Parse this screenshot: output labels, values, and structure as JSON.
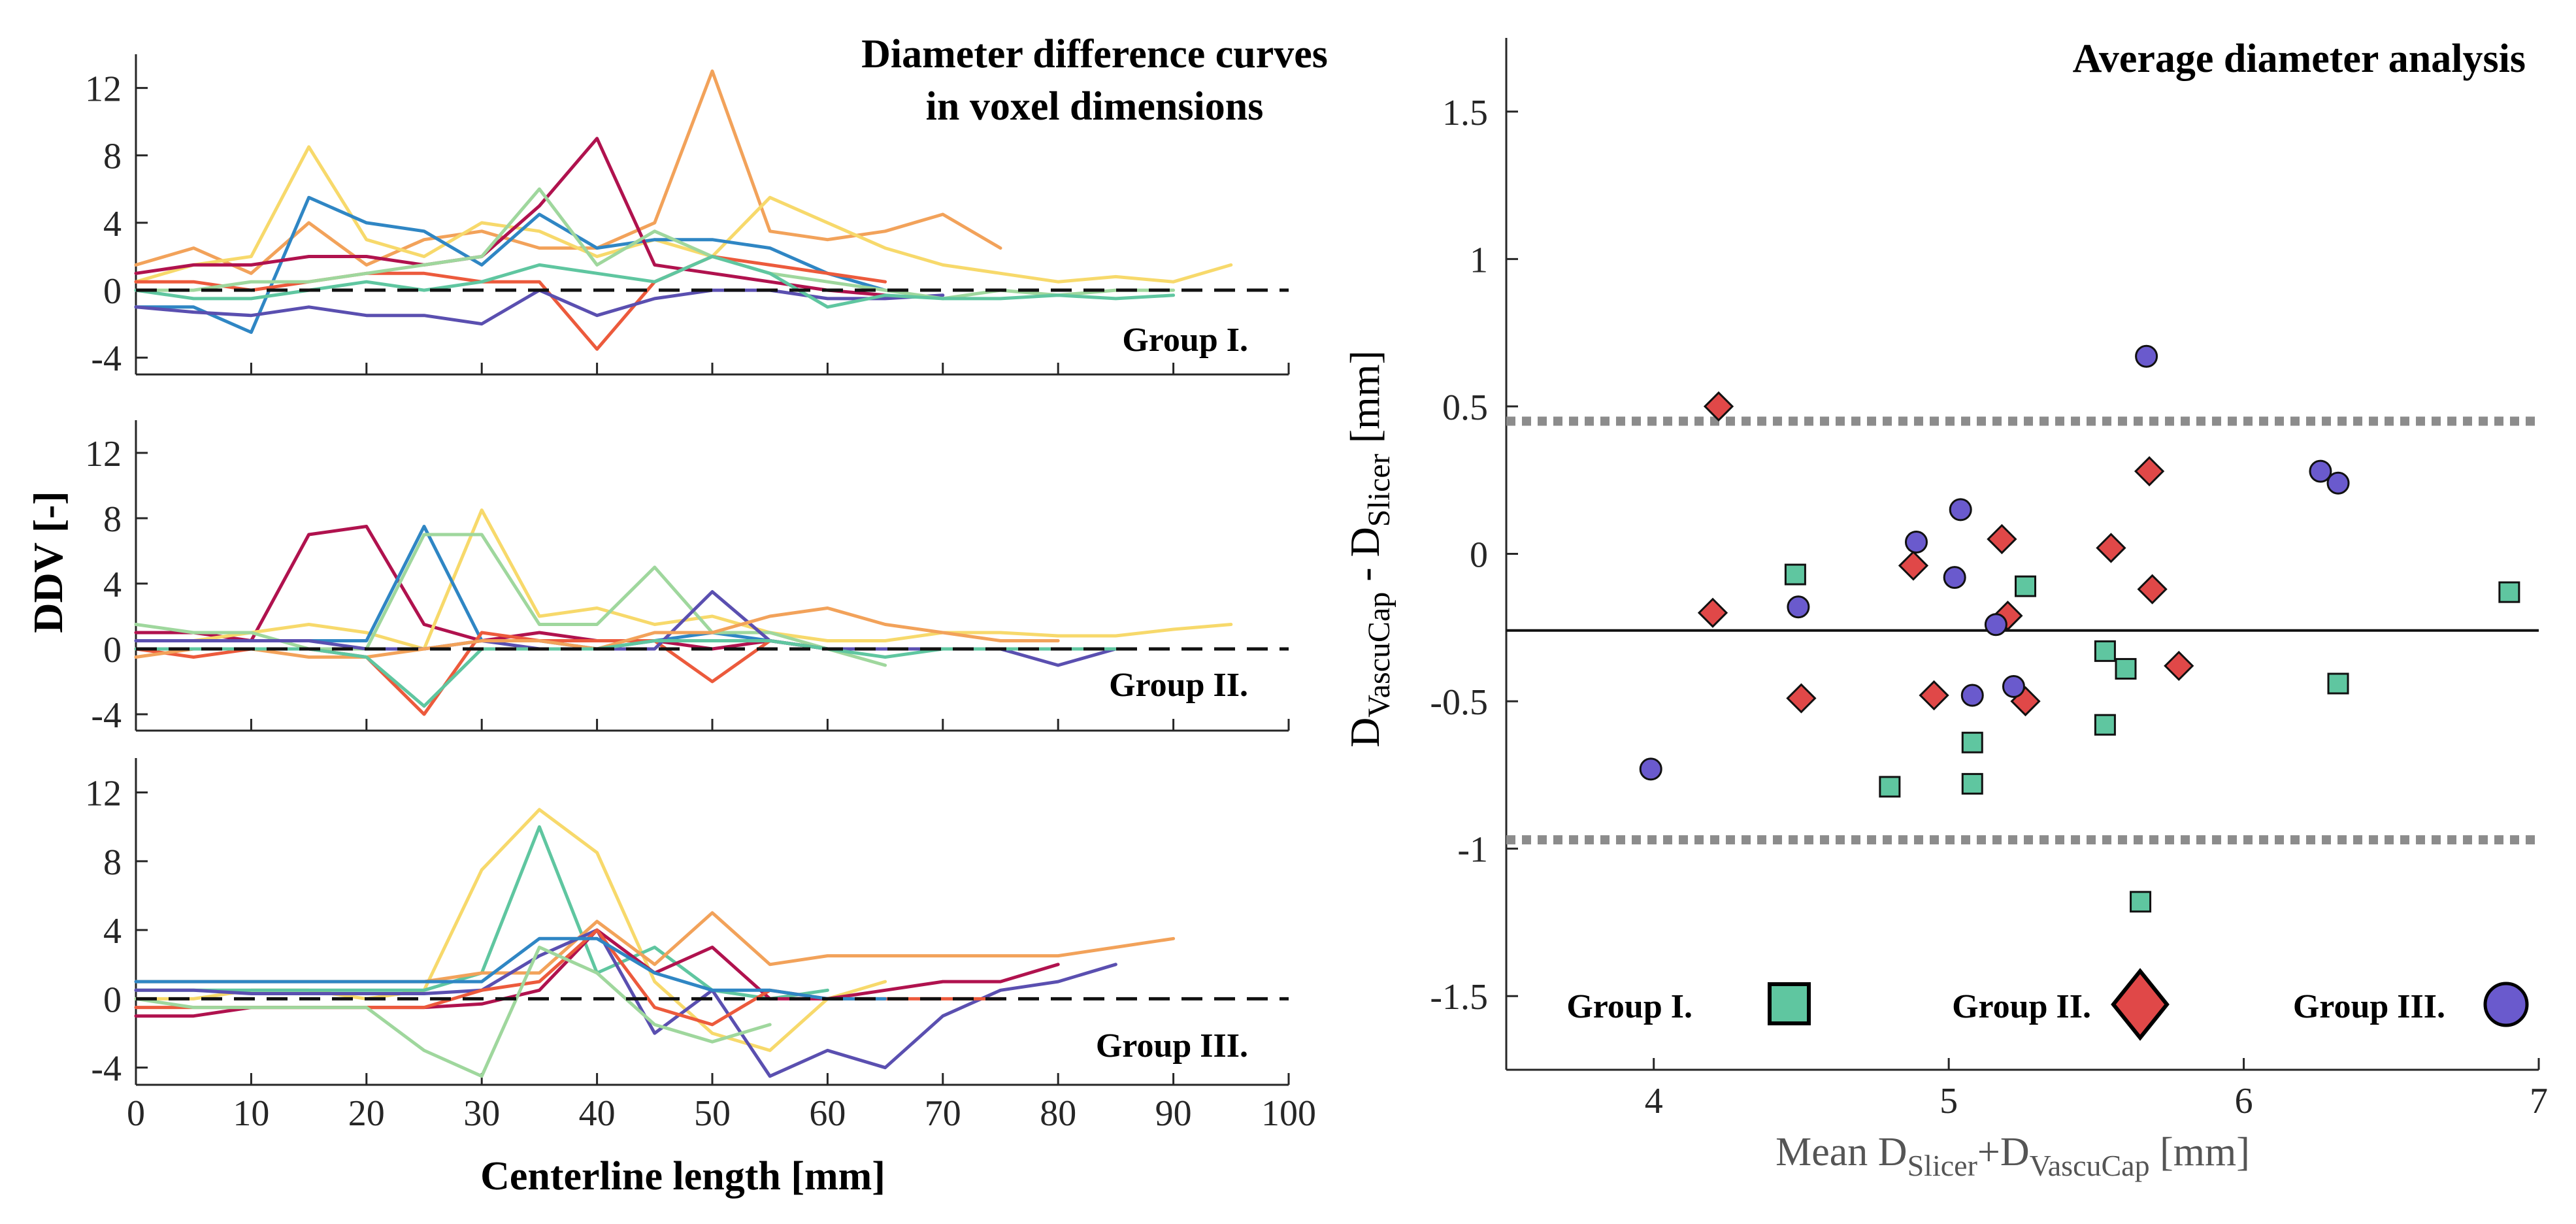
{
  "figure": {
    "left_panel": {
      "title_line1": "Diameter difference curves",
      "title_line2": "in voxel dimensions",
      "ylabel": "DDV [-]",
      "xlabel": "Centerline length [mm]",
      "group_labels": [
        "Group I.",
        "Group II.",
        "Group III."
      ]
    },
    "right_panel": {
      "title": "Average diameter analysis",
      "ylabel": {
        "main": "D",
        "sub1": "VascuCap",
        "mid": " - D",
        "sub2": "Slicer",
        "unit": " [mm]"
      },
      "xlabel": {
        "main": "Mean D",
        "sub1": "Slicer",
        "mid": "+D",
        "sub2": "VascuCap",
        "unit": " [mm]"
      },
      "legend": [
        {
          "label": "Group I.",
          "marker": "square",
          "color": "#5fc6a0"
        },
        {
          "label": "Group II.",
          "marker": "diamond",
          "color": "#e04848"
        },
        {
          "label": "Group III.",
          "marker": "circle",
          "color": "#6a5acd"
        }
      ]
    }
  },
  "chart_data": [
    {
      "type": "line",
      "title": "Diameter difference curves in voxel dimensions",
      "panel": "Group I.",
      "xlabel": "",
      "ylabel": "DDV [-]",
      "xlim": [
        0,
        100
      ],
      "ylim": [
        -5,
        14
      ],
      "xticks": [
        0,
        10,
        20,
        30,
        40,
        50,
        60,
        70,
        80,
        90,
        100
      ],
      "yticks": [
        -4,
        0,
        4,
        8,
        12
      ],
      "reference_line": {
        "y": 0,
        "style": "dashed"
      },
      "x": [
        0,
        5,
        10,
        15,
        20,
        25,
        30,
        35,
        40,
        45,
        50,
        55,
        60,
        65,
        70,
        75,
        80,
        85,
        90,
        95
      ],
      "series": [
        {
          "name": "s1",
          "color": "#f2a25a",
          "values": [
            1.5,
            2.5,
            1.0,
            4.0,
            1.5,
            3.0,
            3.5,
            2.5,
            2.5,
            4.0,
            13.0,
            3.5,
            3.0,
            3.5,
            4.5,
            2.5,
            null,
            null,
            null,
            null
          ]
        },
        {
          "name": "s2",
          "color": "#f7d96b",
          "values": [
            0.5,
            1.5,
            2.0,
            8.5,
            3.0,
            2.0,
            4.0,
            3.5,
            2.0,
            3.0,
            2.0,
            5.5,
            4.0,
            2.5,
            1.5,
            1.0,
            0.5,
            0.8,
            0.5,
            1.5
          ]
        },
        {
          "name": "s3",
          "color": "#2f86c4",
          "values": [
            -1.0,
            -1.0,
            -2.5,
            5.5,
            4.0,
            3.5,
            1.5,
            4.5,
            2.5,
            3.0,
            3.0,
            2.5,
            1.0,
            0.0,
            null,
            null,
            null,
            null,
            null,
            null
          ]
        },
        {
          "name": "s4",
          "color": "#b0124e",
          "values": [
            1.0,
            1.5,
            1.5,
            2.0,
            2.0,
            1.5,
            2.0,
            5.0,
            9.0,
            1.5,
            1.0,
            0.5,
            0.0,
            -0.3,
            null,
            null,
            null,
            null,
            null,
            null
          ]
        },
        {
          "name": "s5",
          "color": "#ec5a3c",
          "values": [
            0.5,
            0.5,
            0.0,
            0.5,
            1.0,
            1.0,
            0.5,
            0.5,
            -3.5,
            0.5,
            2.0,
            1.5,
            1.0,
            0.5,
            null,
            null,
            null,
            null,
            null,
            null
          ]
        },
        {
          "name": "s6",
          "color": "#5a4fb0",
          "values": [
            -1.0,
            -1.3,
            -1.5,
            -1.0,
            -1.5,
            -1.5,
            -2.0,
            0.0,
            -1.5,
            -0.5,
            0.0,
            0.0,
            -0.5,
            -0.5,
            -0.3,
            null,
            null,
            null,
            null,
            null
          ]
        },
        {
          "name": "s7",
          "color": "#9fd79d",
          "values": [
            0.0,
            0.0,
            0.5,
            0.5,
            1.0,
            1.5,
            2.0,
            6.0,
            1.5,
            3.5,
            2.0,
            1.0,
            0.5,
            0.0,
            -0.5,
            0.0,
            -0.3,
            0.0,
            0.0,
            null
          ]
        },
        {
          "name": "s8",
          "color": "#5fc6a0",
          "values": [
            0.0,
            -0.5,
            -0.5,
            0.0,
            0.5,
            0.0,
            0.5,
            1.5,
            1.0,
            0.5,
            2.0,
            1.0,
            -1.0,
            -0.3,
            -0.5,
            -0.5,
            -0.3,
            -0.5,
            -0.3,
            null
          ]
        }
      ]
    },
    {
      "type": "line",
      "panel": "Group II.",
      "xlabel": "",
      "ylabel": "DDV [-]",
      "xlim": [
        0,
        100
      ],
      "ylim": [
        -5,
        14
      ],
      "xticks": [
        0,
        10,
        20,
        30,
        40,
        50,
        60,
        70,
        80,
        90,
        100
      ],
      "yticks": [
        -4,
        0,
        4,
        8,
        12
      ],
      "reference_line": {
        "y": 0,
        "style": "dashed"
      },
      "x": [
        0,
        5,
        10,
        15,
        20,
        25,
        30,
        35,
        40,
        45,
        50,
        55,
        60,
        65,
        70,
        75,
        80,
        85,
        90,
        95
      ],
      "series": [
        {
          "name": "s1",
          "color": "#b0124e",
          "values": [
            1.0,
            1.0,
            0.5,
            7.0,
            7.5,
            1.5,
            0.5,
            1.0,
            0.5,
            0.5,
            0.0,
            0.5,
            0.0,
            null,
            null,
            null,
            null,
            null,
            null,
            null
          ]
        },
        {
          "name": "s2",
          "color": "#f7d96b",
          "values": [
            0.5,
            0.5,
            1.0,
            1.5,
            1.0,
            0.0,
            8.5,
            2.0,
            2.5,
            1.5,
            2.0,
            1.0,
            0.5,
            0.5,
            1.0,
            1.0,
            0.8,
            0.8,
            1.2,
            1.5
          ]
        },
        {
          "name": "s3",
          "color": "#2f86c4",
          "values": [
            0.5,
            0.5,
            0.5,
            0.5,
            0.5,
            7.5,
            0.5,
            0.5,
            0.0,
            0.5,
            1.0,
            0.5,
            0.0,
            0.0,
            0.0,
            0.0,
            0.0,
            null,
            null,
            null
          ]
        },
        {
          "name": "s4",
          "color": "#9fd79d",
          "values": [
            1.5,
            1.0,
            1.0,
            0.0,
            0.0,
            7.0,
            7.0,
            1.5,
            1.5,
            5.0,
            1.0,
            1.0,
            0.0,
            -1.0,
            null,
            null,
            null,
            null,
            null,
            null
          ]
        },
        {
          "name": "s5",
          "color": "#ec5a3c",
          "values": [
            0.0,
            -0.5,
            0.0,
            0.0,
            -0.5,
            -4.0,
            1.0,
            0.5,
            0.5,
            0.5,
            -2.0,
            0.5,
            0.0,
            0.0,
            null,
            null,
            null,
            null,
            null,
            null
          ]
        },
        {
          "name": "s6",
          "color": "#5a4fb0",
          "values": [
            0.5,
            0.5,
            0.5,
            0.5,
            0.0,
            0.0,
            0.5,
            0.0,
            0.0,
            0.0,
            3.5,
            0.5,
            0.0,
            0.0,
            0.0,
            0.0,
            -1.0,
            0.0,
            null,
            null
          ]
        },
        {
          "name": "s7",
          "color": "#f2a25a",
          "values": [
            -0.5,
            0.0,
            0.0,
            -0.5,
            -0.5,
            0.0,
            0.5,
            0.5,
            0.0,
            1.0,
            1.0,
            2.0,
            2.5,
            1.5,
            1.0,
            0.5,
            0.5,
            null,
            null,
            null
          ]
        },
        {
          "name": "s8",
          "color": "#5fc6a0",
          "values": [
            0.0,
            0.0,
            0.0,
            0.0,
            -0.5,
            -3.5,
            0.0,
            0.0,
            0.0,
            0.5,
            0.5,
            0.5,
            0.0,
            -0.5,
            0.0,
            0.0,
            0.0,
            0.0,
            null,
            null
          ]
        }
      ]
    },
    {
      "type": "line",
      "panel": "Group III.",
      "xlabel": "Centerline length [mm]",
      "ylabel": "DDV [-]",
      "xlim": [
        0,
        100
      ],
      "ylim": [
        -5,
        14
      ],
      "xticks": [
        0,
        10,
        20,
        30,
        40,
        50,
        60,
        70,
        80,
        90,
        100
      ],
      "yticks": [
        -4,
        0,
        4,
        8,
        12
      ],
      "reference_line": {
        "y": 0,
        "style": "dashed"
      },
      "x": [
        0,
        5,
        10,
        15,
        20,
        25,
        30,
        35,
        40,
        45,
        50,
        55,
        60,
        65,
        70,
        75,
        80,
        85,
        90,
        95
      ],
      "series": [
        {
          "name": "s1",
          "color": "#f7d96b",
          "values": [
            0.0,
            0.0,
            0.5,
            0.5,
            0.0,
            0.5,
            7.5,
            11.0,
            8.5,
            1.0,
            -2.0,
            -3.0,
            0.0,
            1.0,
            null,
            null,
            null,
            null,
            null,
            null
          ]
        },
        {
          "name": "s2",
          "color": "#5fc6a0",
          "values": [
            0.5,
            0.5,
            0.5,
            0.5,
            0.5,
            0.5,
            1.5,
            10.0,
            1.5,
            3.0,
            0.5,
            0.0,
            0.5,
            null,
            null,
            null,
            null,
            null,
            null,
            null
          ]
        },
        {
          "name": "s3",
          "color": "#f2a25a",
          "values": [
            1.0,
            1.0,
            1.0,
            1.0,
            1.0,
            1.0,
            1.5,
            1.5,
            4.5,
            2.0,
            5.0,
            2.0,
            2.5,
            2.5,
            2.5,
            2.5,
            2.5,
            3.0,
            3.5,
            null
          ]
        },
        {
          "name": "s4",
          "color": "#b0124e",
          "values": [
            -1.0,
            -1.0,
            -0.5,
            -0.5,
            -0.5,
            -0.5,
            -0.3,
            0.5,
            4.0,
            1.5,
            3.0,
            0.0,
            0.0,
            0.5,
            1.0,
            1.0,
            2.0,
            null,
            null,
            null
          ]
        },
        {
          "name": "s5",
          "color": "#5a4fb0",
          "values": [
            0.5,
            0.5,
            0.3,
            0.3,
            0.3,
            0.3,
            0.5,
            2.5,
            4.0,
            -2.0,
            0.5,
            -4.5,
            -3.0,
            -4.0,
            -1.0,
            0.5,
            1.0,
            2.0,
            null,
            null
          ]
        },
        {
          "name": "s6",
          "color": "#ec5a3c",
          "values": [
            -0.5,
            -0.5,
            -0.5,
            -0.5,
            -0.5,
            -0.5,
            0.5,
            1.0,
            4.0,
            -0.5,
            -1.5,
            0.5,
            0.0,
            0.0,
            0.0,
            0.0,
            null,
            null,
            null,
            null
          ]
        },
        {
          "name": "s7",
          "color": "#2f86c4",
          "values": [
            1.0,
            1.0,
            1.0,
            1.0,
            1.0,
            1.0,
            1.0,
            3.5,
            3.5,
            1.5,
            0.5,
            0.5,
            0.0,
            0.0,
            null,
            null,
            null,
            null,
            null,
            null
          ]
        },
        {
          "name": "s8",
          "color": "#9fd79d",
          "values": [
            0.0,
            -0.5,
            -0.5,
            -0.5,
            -0.5,
            -3.0,
            -4.5,
            3.0,
            1.5,
            -1.5,
            -2.5,
            -1.5,
            null,
            null,
            null,
            null,
            null,
            null,
            null,
            null
          ]
        }
      ]
    },
    {
      "type": "scatter",
      "title": "Average diameter analysis",
      "xlabel": "Mean D_Slicer+D_VascuCap [mm]",
      "ylabel": "D_VascuCap - D_Slicer [mm]",
      "xlim": [
        3.5,
        7
      ],
      "ylim": [
        -1.75,
        1.75
      ],
      "xticks": [
        4,
        5,
        6,
        7
      ],
      "yticks": [
        -1.5,
        -1,
        -0.5,
        0,
        0.5,
        1,
        1.5
      ],
      "mean_line": -0.26,
      "limits_of_agreement": [
        0.45,
        -0.97
      ],
      "series": [
        {
          "name": "Group I.",
          "marker": "square",
          "color": "#5fc6a0",
          "points": [
            [
              4.48,
              -0.07
            ],
            [
              4.8,
              -0.79
            ],
            [
              5.08,
              -0.64
            ],
            [
              5.08,
              -0.78
            ],
            [
              5.26,
              -0.11
            ],
            [
              5.53,
              -0.33
            ],
            [
              5.53,
              -0.58
            ],
            [
              5.6,
              -0.39
            ],
            [
              5.65,
              -1.18
            ],
            [
              6.32,
              -0.44
            ],
            [
              6.9,
              -0.13
            ]
          ]
        },
        {
          "name": "Group II.",
          "marker": "diamond",
          "color": "#e04848",
          "points": [
            [
              4.2,
              -0.2
            ],
            [
              4.22,
              0.5
            ],
            [
              4.5,
              -0.49
            ],
            [
              4.88,
              -0.04
            ],
            [
              4.95,
              -0.48
            ],
            [
              5.18,
              0.05
            ],
            [
              5.2,
              -0.21
            ],
            [
              5.26,
              -0.5
            ],
            [
              5.55,
              0.02
            ],
            [
              5.68,
              0.28
            ],
            [
              5.69,
              -0.12
            ],
            [
              5.78,
              -0.38
            ]
          ]
        },
        {
          "name": "Group III.",
          "marker": "circle",
          "color": "#6a5acd",
          "points": [
            [
              3.99,
              -0.73
            ],
            [
              4.49,
              -0.18
            ],
            [
              4.89,
              0.04
            ],
            [
              5.02,
              -0.08
            ],
            [
              5.04,
              0.15
            ],
            [
              5.08,
              -0.48
            ],
            [
              5.16,
              -0.24
            ],
            [
              5.22,
              -0.45
            ],
            [
              5.67,
              0.67
            ],
            [
              6.26,
              0.28
            ],
            [
              6.32,
              0.24
            ]
          ]
        }
      ]
    }
  ]
}
